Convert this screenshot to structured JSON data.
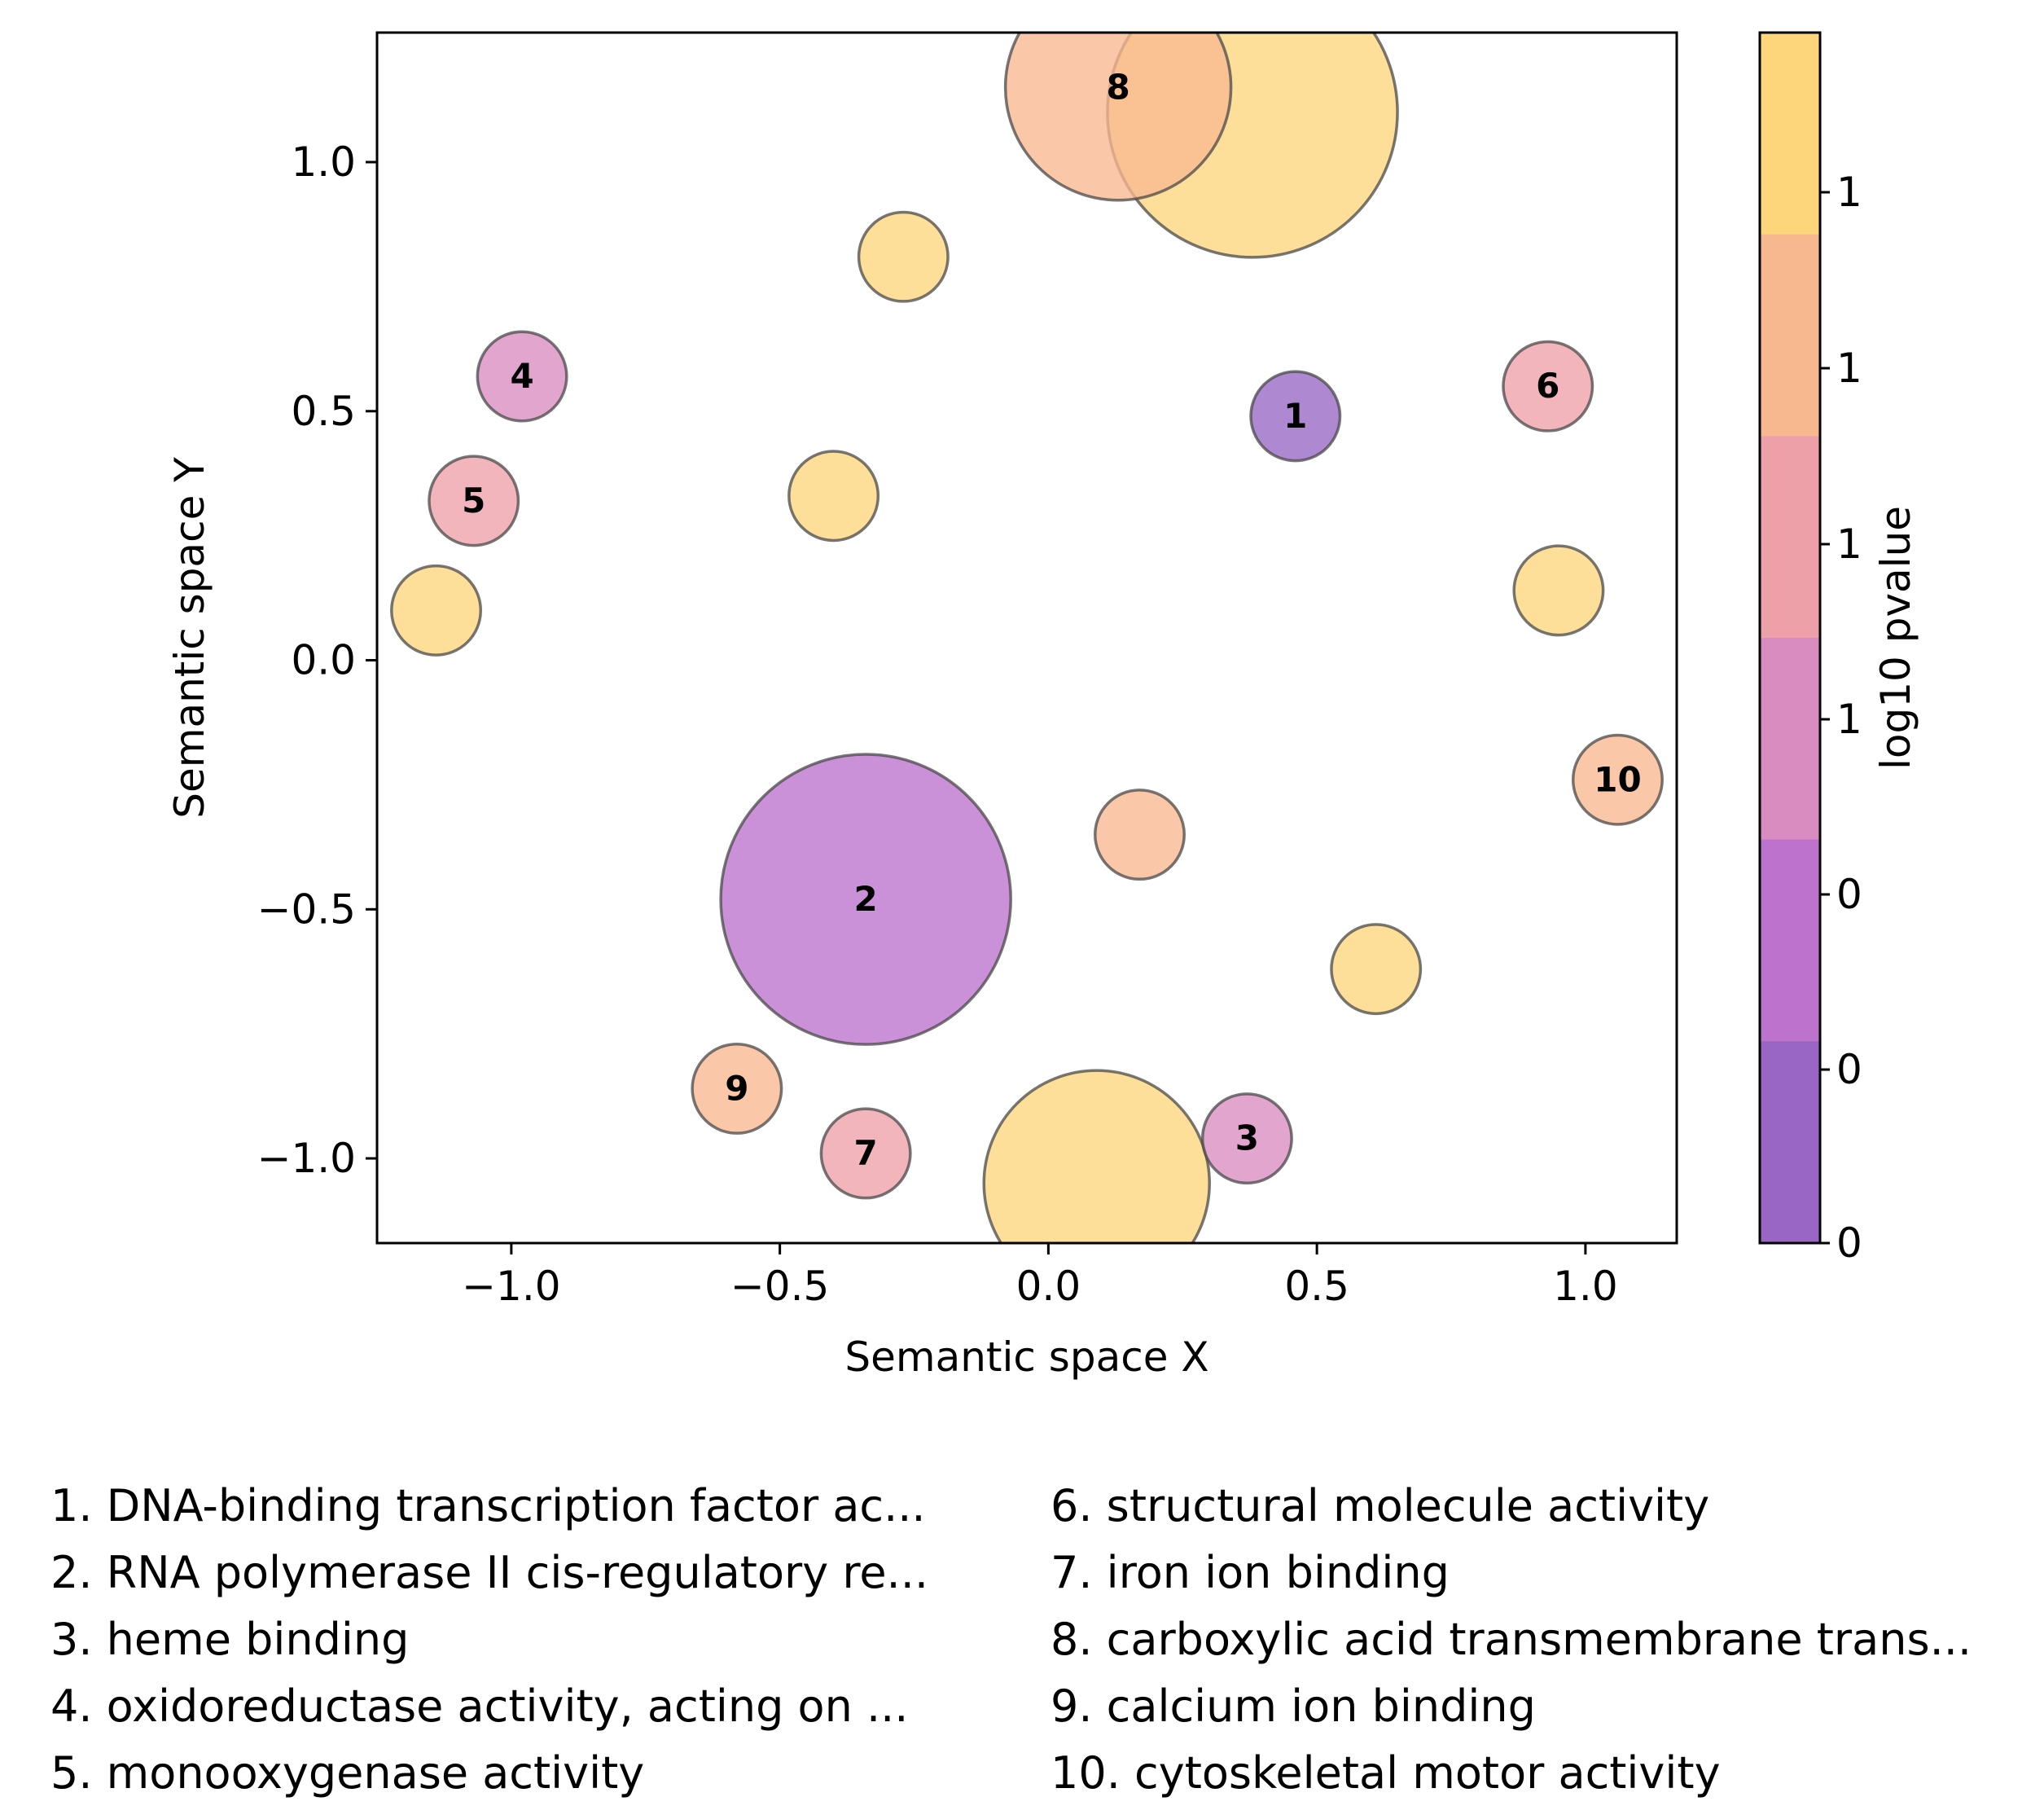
{
  "chart_data": {
    "type": "scatter",
    "xlabel": "Semantic space X",
    "ylabel": "Semantic space Y",
    "xlim": [
      -1.25,
      1.17
    ],
    "ylim": [
      -1.17,
      1.26
    ],
    "x_ticks": [
      -1.0,
      -0.5,
      0.0,
      0.5,
      1.0
    ],
    "x_tick_labels": [
      "−1.0",
      "−0.5",
      "0.0",
      "0.5",
      "1.0"
    ],
    "y_ticks": [
      1.0,
      0.5,
      0.0,
      -0.5,
      -1.0
    ],
    "y_tick_labels": [
      "1.0",
      "0.5",
      "0.0",
      "−0.5",
      "−1.0"
    ],
    "grid": false,
    "colorbar": {
      "label": "log10 pvalue",
      "colors": [
        "#fdd67c",
        "#f8b88f",
        "#eda0a8",
        "#d98cc0",
        "#bd72cd",
        "#9966c5"
      ],
      "tick_labels": [
        "1",
        "1",
        "1",
        "1",
        "0",
        "0",
        "0"
      ]
    },
    "points": [
      {
        "x": 0.38,
        "y": 1.1,
        "r": 0.27,
        "color": "#fdd67c",
        "label": ""
      },
      {
        "x": 0.13,
        "y": 1.15,
        "r": 0.21,
        "color": "#f8b88f",
        "label": "8"
      },
      {
        "x": -0.27,
        "y": 0.81,
        "r": 0.083,
        "color": "#fdd67c",
        "label": ""
      },
      {
        "x": -0.98,
        "y": 0.57,
        "r": 0.083,
        "color": "#d98cc0",
        "label": "4"
      },
      {
        "x": 0.46,
        "y": 0.49,
        "r": 0.083,
        "color": "#9966c5",
        "label": "1"
      },
      {
        "x": 0.93,
        "y": 0.55,
        "r": 0.083,
        "color": "#eda0a8",
        "label": "6"
      },
      {
        "x": -1.07,
        "y": 0.32,
        "r": 0.083,
        "color": "#eda0a8",
        "label": "5"
      },
      {
        "x": -0.4,
        "y": 0.33,
        "r": 0.083,
        "color": "#fdd67c",
        "label": ""
      },
      {
        "x": 0.95,
        "y": 0.14,
        "r": 0.083,
        "color": "#fdd67c",
        "label": ""
      },
      {
        "x": -1.14,
        "y": 0.1,
        "r": 0.083,
        "color": "#fdd67c",
        "label": ""
      },
      {
        "x": 1.06,
        "y": -0.24,
        "r": 0.083,
        "color": "#f8b88f",
        "label": "10"
      },
      {
        "x": 0.17,
        "y": -0.35,
        "r": 0.083,
        "color": "#f8b88f",
        "label": ""
      },
      {
        "x": -0.34,
        "y": -0.48,
        "r": 0.27,
        "color": "#bd72cd",
        "label": "2"
      },
      {
        "x": 0.61,
        "y": -0.62,
        "r": 0.083,
        "color": "#fdd67c",
        "label": ""
      },
      {
        "x": -0.58,
        "y": -0.86,
        "r": 0.083,
        "color": "#f8b88f",
        "label": "9"
      },
      {
        "x": -0.34,
        "y": -0.99,
        "r": 0.083,
        "color": "#eda0a8",
        "label": "7"
      },
      {
        "x": 0.09,
        "y": -1.05,
        "r": 0.21,
        "color": "#fdd67c",
        "label": ""
      },
      {
        "x": 0.37,
        "y": -0.96,
        "r": 0.083,
        "color": "#d98cc0",
        "label": "3"
      }
    ],
    "legend": [
      "1. DNA-binding transcription factor ac...",
      "2. RNA polymerase II cis-regulatory re...",
      "3. heme binding",
      "4. oxidoreductase activity, acting on ...",
      "5. monooxygenase activity",
      "6. structural molecule activity",
      "7. iron ion binding",
      "8. carboxylic acid transmembrane trans...",
      "9. calcium ion binding",
      "10. cytoskeletal motor activity"
    ]
  }
}
